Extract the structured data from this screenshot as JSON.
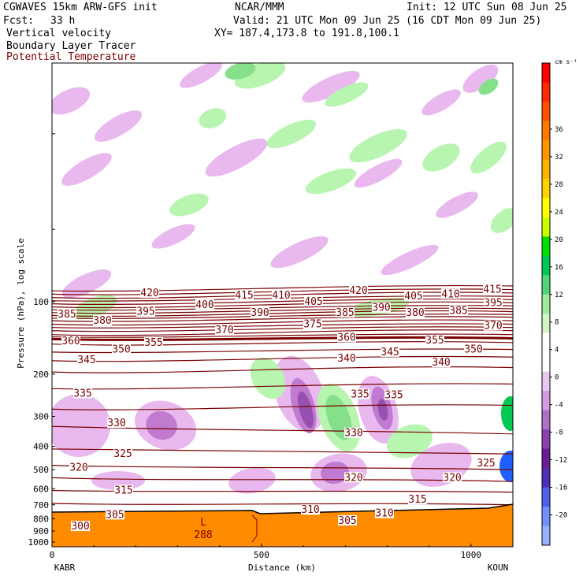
{
  "header": {
    "model": "CGWAVES 15km ARW-GFS init",
    "org": "NCAR/MMM",
    "init": "Init: 12 UTC Sun 08 Jun 25",
    "fcst_label": "Fcst:",
    "fcst_value": "33 h",
    "valid": "Valid: 21 UTC Mon 09 Jun 25 (16 CDT Mon 09 Jun 25)",
    "field1": "Vertical velocity",
    "field2": "Boundary Layer Tracer",
    "field3": "Potential Temperature",
    "xy": "XY= 187.4,173.8 to 191.8,100.1"
  },
  "colors": {
    "theta": "#7a0000",
    "terrain": "#ff8c00",
    "up_light": "#b8f5b0",
    "up_mid": "#86e08a",
    "down_light": "#e8b8ee",
    "down_mid": "#c07ad0",
    "down_dark": "#9650b0"
  },
  "chart_data": {
    "type": "heatmap",
    "title": "Vertical velocity",
    "xlabel": "Distance (km)",
    "ylabel": "Pressure (hPa), log scale",
    "x_ticks": [
      "0",
      "500",
      "1000"
    ],
    "x_range": [
      0,
      1100
    ],
    "y_scale": "log",
    "y_ticks": [
      "100",
      "200",
      "300",
      "400",
      "500",
      "600",
      "700",
      "800",
      "900",
      "1000"
    ],
    "left_station": "KABR",
    "right_station": "KOUN",
    "colorbar": {
      "units": "cm s⁻¹",
      "ticks": [
        "36",
        "32",
        "28",
        "24",
        "20",
        "16",
        "12",
        "8",
        "4",
        "0",
        "-4",
        "-8",
        "-12",
        "-16",
        "-20"
      ],
      "colors": [
        "#ff0000",
        "#ff2800",
        "#ff5000",
        "#ff7800",
        "#ff9600",
        "#ffb400",
        "#ffd200",
        "#ffff00",
        "#c8ff00",
        "#00e000",
        "#00c850",
        "#50d878",
        "#9cec9c",
        "#d2f5c8",
        "#ffffff",
        "#ffffff",
        "#e8c8f0",
        "#d898e4",
        "#b070c8",
        "#8c40b0",
        "#6a1e96",
        "#5030b8",
        "#5060e8",
        "#7090ff",
        "#98b0ff"
      ]
    },
    "theta_labels": [
      {
        "v": "420",
        "x": 190,
        "p": 92
      },
      {
        "v": "415",
        "x": 310,
        "p": 94
      },
      {
        "v": "410",
        "x": 357,
        "p": 94
      },
      {
        "v": "420",
        "x": 455,
        "p": 90
      },
      {
        "v": "405",
        "x": 525,
        "p": 95
      },
      {
        "v": "410",
        "x": 572,
        "p": 93
      },
      {
        "v": "415",
        "x": 625,
        "p": 89
      },
      {
        "v": "400",
        "x": 260,
        "p": 103
      },
      {
        "v": "405",
        "x": 398,
        "p": 100
      },
      {
        "v": "395",
        "x": 185,
        "p": 110
      },
      {
        "v": "390",
        "x": 330,
        "p": 111
      },
      {
        "v": "385",
        "x": 438,
        "p": 111
      },
      {
        "v": "390",
        "x": 484,
        "p": 106
      },
      {
        "v": "380",
        "x": 527,
        "p": 111
      },
      {
        "v": "385",
        "x": 582,
        "p": 109
      },
      {
        "v": "395",
        "x": 626,
        "p": 101
      },
      {
        "v": "385",
        "x": 85,
        "p": 113
      },
      {
        "v": "380",
        "x": 130,
        "p": 120
      },
      {
        "v": "375",
        "x": 397,
        "p": 124
      },
      {
        "v": "370",
        "x": 285,
        "p": 131
      },
      {
        "v": "370",
        "x": 626,
        "p": 126
      },
      {
        "v": "360",
        "x": 90,
        "p": 146
      },
      {
        "v": "355",
        "x": 195,
        "p": 148
      },
      {
        "v": "360",
        "x": 440,
        "p": 141
      },
      {
        "v": "355",
        "x": 552,
        "p": 145
      },
      {
        "v": "350",
        "x": 154,
        "p": 158
      },
      {
        "v": "350",
        "x": 601,
        "p": 158
      },
      {
        "v": "345",
        "x": 110,
        "p": 175
      },
      {
        "v": "340",
        "x": 440,
        "p": 172
      },
      {
        "v": "345",
        "x": 495,
        "p": 162
      },
      {
        "v": "340",
        "x": 560,
        "p": 179
      },
      {
        "v": "335",
        "x": 105,
        "p": 241
      },
      {
        "v": "335",
        "x": 457,
        "p": 243
      },
      {
        "v": "335",
        "x": 500,
        "p": 245
      },
      {
        "v": "330",
        "x": 148,
        "p": 320
      },
      {
        "v": "330",
        "x": 449,
        "p": 352
      },
      {
        "v": "325",
        "x": 156,
        "p": 430
      },
      {
        "v": "325",
        "x": 617,
        "p": 470
      },
      {
        "v": "320",
        "x": 100,
        "p": 490
      },
      {
        "v": "320",
        "x": 449,
        "p": 540
      },
      {
        "v": "320",
        "x": 574,
        "p": 540
      },
      {
        "v": "315",
        "x": 157,
        "p": 610
      },
      {
        "v": "315",
        "x": 530,
        "p": 665
      },
      {
        "v": "310",
        "x": 394,
        "p": 735
      },
      {
        "v": "310",
        "x": 488,
        "p": 760
      },
      {
        "v": "305",
        "x": 146,
        "p": 770
      },
      {
        "v": "305",
        "x": 441,
        "p": 815
      },
      {
        "v": "300",
        "x": 102,
        "p": 860
      }
    ],
    "low_label": {
      "v": "L",
      "value": "288"
    }
  }
}
